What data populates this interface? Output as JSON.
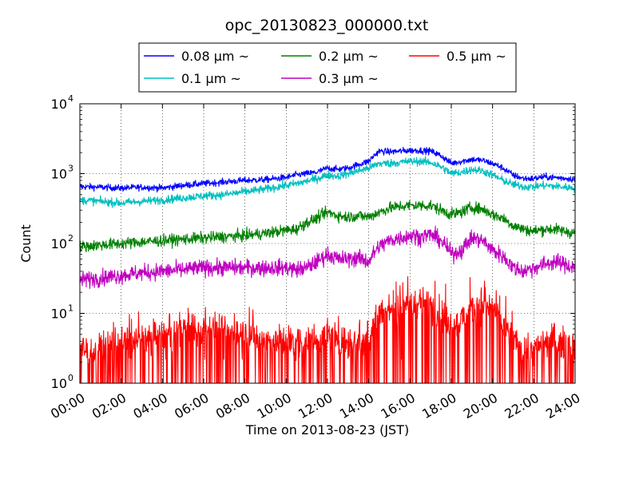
{
  "chart_data": {
    "type": "line",
    "title": "opc_20130823_000000.txt",
    "xlabel": "Time on 2013-08-23 (JST)",
    "ylabel": "Count",
    "x_unit": "hours",
    "xlim": [
      0,
      24
    ],
    "ylim": [
      1,
      10000
    ],
    "y_scale": "log",
    "grid": true,
    "legend_position": "top (above plot)",
    "x_tick_labels": [
      "00:00",
      "02:00",
      "04:00",
      "06:00",
      "08:00",
      "10:00",
      "12:00",
      "14:00",
      "16:00",
      "18:00",
      "20:00",
      "22:00",
      "24:00"
    ],
    "y_tick_labels": [
      {
        "base": "10",
        "exp": "0"
      },
      {
        "base": "10",
        "exp": "1"
      },
      {
        "base": "10",
        "exp": "2"
      },
      {
        "base": "10",
        "exp": "3"
      },
      {
        "base": "10",
        "exp": "4"
      }
    ],
    "series": [
      {
        "name": "0.08 μm ~",
        "color": "#0000ff",
        "x": [
          0,
          1,
          2,
          3,
          4,
          5,
          6,
          7,
          8,
          9,
          10,
          10.5,
          11,
          11.5,
          12,
          12.5,
          13,
          13.5,
          14,
          14.5,
          15,
          15.5,
          16,
          16.5,
          17,
          17.5,
          18,
          18.5,
          19,
          19.5,
          20,
          20.5,
          21,
          21.5,
          22,
          22.5,
          23,
          23.5,
          24
        ],
        "y": [
          650,
          640,
          620,
          640,
          620,
          680,
          720,
          760,
          800,
          820,
          880,
          960,
          1000,
          1050,
          1200,
          1150,
          1200,
          1350,
          1500,
          2100,
          2050,
          2100,
          2150,
          2150,
          2100,
          1800,
          1400,
          1500,
          1600,
          1550,
          1400,
          1200,
          950,
          850,
          850,
          900,
          880,
          860,
          830
        ]
      },
      {
        "name": "0.1 μm ~",
        "color": "#00bfbf",
        "x": [
          0,
          1,
          2,
          3,
          4,
          5,
          6,
          7,
          8,
          9,
          10,
          10.5,
          11,
          11.5,
          12,
          12.5,
          13,
          13.5,
          14,
          14.5,
          15,
          15.5,
          16,
          16.5,
          17,
          17.5,
          18,
          18.5,
          19,
          19.5,
          20,
          20.5,
          21,
          21.5,
          22,
          22.5,
          23,
          23.5,
          24
        ],
        "y": [
          420,
          400,
          380,
          400,
          420,
          450,
          480,
          500,
          550,
          600,
          680,
          720,
          780,
          850,
          950,
          920,
          1000,
          1100,
          1200,
          1400,
          1400,
          1450,
          1500,
          1500,
          1450,
          1250,
          1000,
          1050,
          1150,
          1100,
          950,
          800,
          700,
          650,
          650,
          680,
          660,
          640,
          620
        ]
      },
      {
        "name": "0.2 μm ~",
        "color": "#008000",
        "x": [
          0,
          1,
          2,
          3,
          4,
          5,
          6,
          7,
          8,
          9,
          10,
          10.5,
          11,
          11.5,
          12,
          12.5,
          13,
          13.5,
          14,
          14.5,
          15,
          15.5,
          16,
          16.5,
          17,
          17.5,
          18,
          18.5,
          19,
          19.5,
          20,
          20.5,
          21,
          21.5,
          22,
          22.5,
          23,
          23.5,
          24
        ],
        "y": [
          90,
          95,
          100,
          105,
          110,
          115,
          120,
          125,
          130,
          140,
          155,
          160,
          200,
          230,
          280,
          250,
          240,
          250,
          240,
          280,
          320,
          340,
          350,
          350,
          350,
          300,
          260,
          280,
          330,
          310,
          260,
          230,
          180,
          160,
          150,
          160,
          160,
          150,
          140
        ]
      },
      {
        "name": "0.3 μm ~",
        "color": "#bf00bf",
        "x": [
          0,
          1,
          2,
          3,
          4,
          5,
          6,
          7,
          8,
          9,
          10,
          10.5,
          11,
          11.5,
          12,
          12.5,
          13,
          13.5,
          14,
          14.5,
          15,
          15.5,
          16,
          16.5,
          17,
          17.5,
          18,
          18.5,
          19,
          19.5,
          20,
          20.5,
          21,
          21.5,
          22,
          22.5,
          23,
          23.5,
          24
        ],
        "y": [
          30,
          32,
          35,
          38,
          40,
          42,
          45,
          45,
          45,
          45,
          45,
          42,
          45,
          55,
          70,
          60,
          60,
          62,
          55,
          90,
          110,
          120,
          130,
          125,
          135,
          110,
          70,
          80,
          120,
          110,
          80,
          65,
          45,
          40,
          45,
          50,
          55,
          50,
          45
        ]
      },
      {
        "name": "0.5 μm ~",
        "color": "#ff0000",
        "x": [
          0,
          1,
          2,
          3,
          4,
          5,
          6,
          7,
          8,
          9,
          10,
          10.5,
          11,
          11.5,
          12,
          12.5,
          13,
          13.5,
          14,
          14.5,
          15,
          15.5,
          16,
          16.5,
          17,
          17.5,
          18,
          18.5,
          19,
          19.5,
          20,
          20.5,
          21,
          21.5,
          22,
          22.5,
          23,
          23.5,
          24
        ],
        "y": [
          3,
          3,
          4,
          4,
          5,
          6,
          6,
          6,
          5,
          4,
          4,
          4,
          4,
          4,
          5,
          4,
          4,
          4,
          4,
          10,
          12,
          12,
          13,
          14,
          13,
          10,
          7,
          8,
          12,
          14,
          11,
          7,
          4,
          3,
          3,
          4,
          4,
          4,
          4
        ]
      }
    ]
  }
}
